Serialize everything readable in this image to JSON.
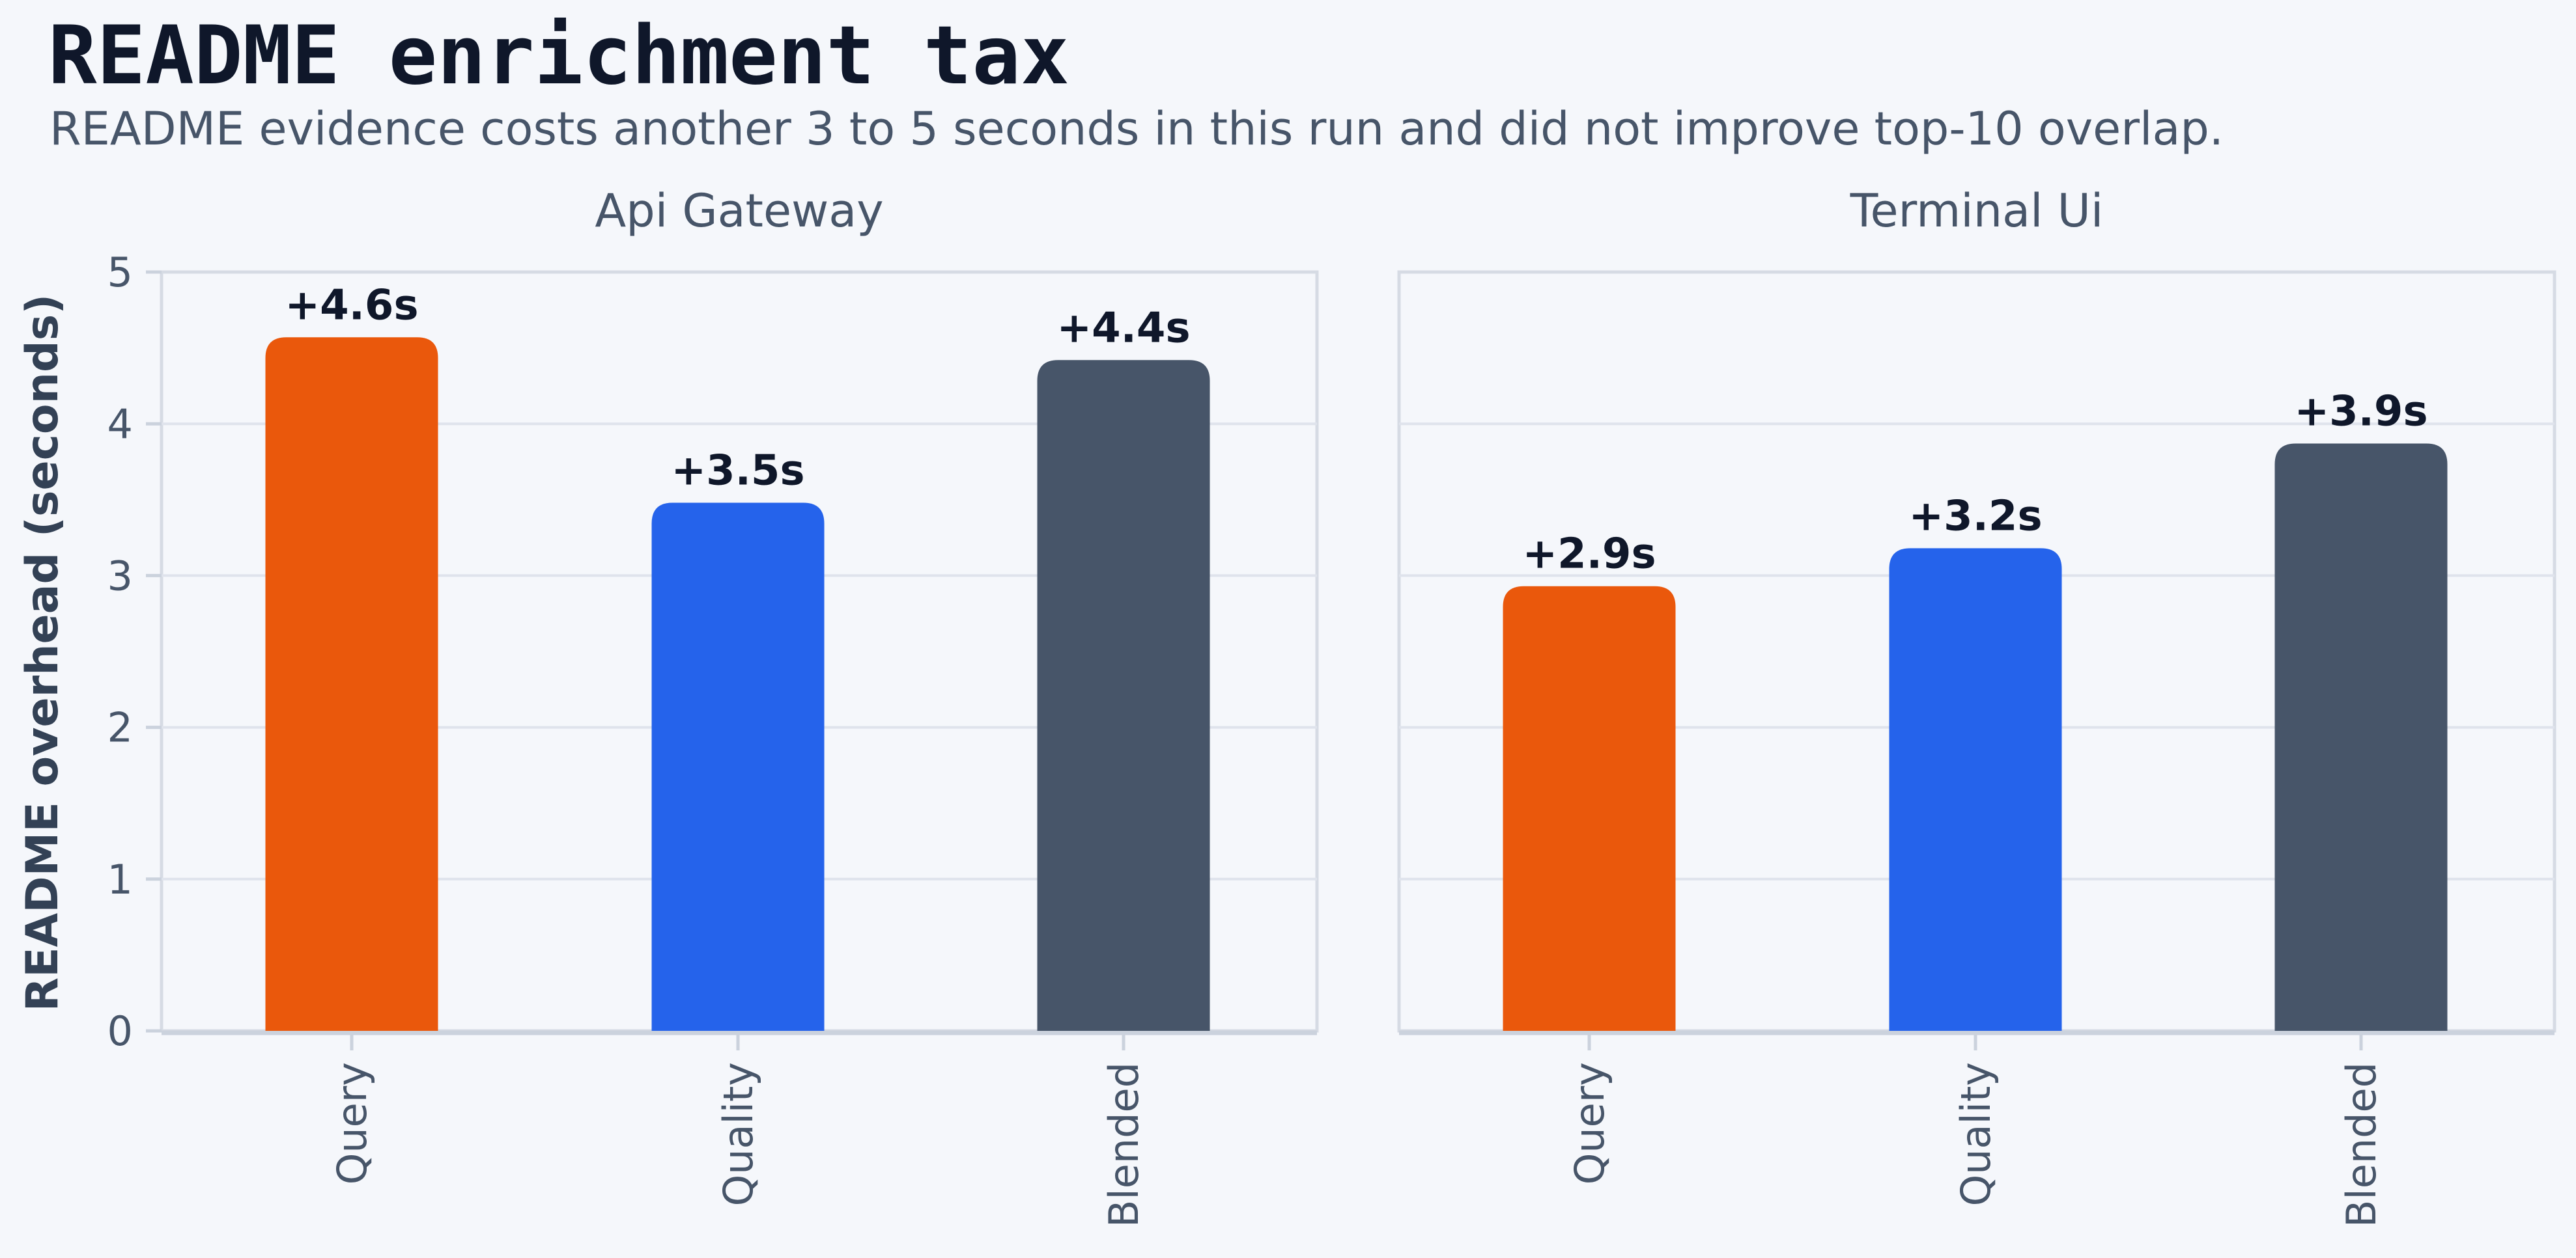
{
  "title": "README enrichment tax",
  "subtitle": "README evidence costs another 3 to 5 seconds in this run and did not improve top-10 overlap.",
  "chart_data": {
    "type": "bar",
    "ylabel": "README overhead (seconds)",
    "ylim": [
      0,
      5
    ],
    "yticks": [
      "0",
      "1",
      "2",
      "3",
      "4",
      "5"
    ],
    "grid": true,
    "categories": [
      "Query",
      "Quality",
      "Blended"
    ],
    "colors": [
      "#ea580c",
      "#2563eb",
      "#475569"
    ],
    "panels": [
      {
        "title": "Api Gateway",
        "values": [
          4.57,
          3.48,
          4.42
        ],
        "labels": [
          "+4.6s",
          "+3.5s",
          "+4.4s"
        ]
      },
      {
        "title": "Terminal Ui",
        "values": [
          2.93,
          3.18,
          3.87
        ],
        "labels": [
          "+2.9s",
          "+3.2s",
          "+3.9s"
        ]
      }
    ]
  }
}
